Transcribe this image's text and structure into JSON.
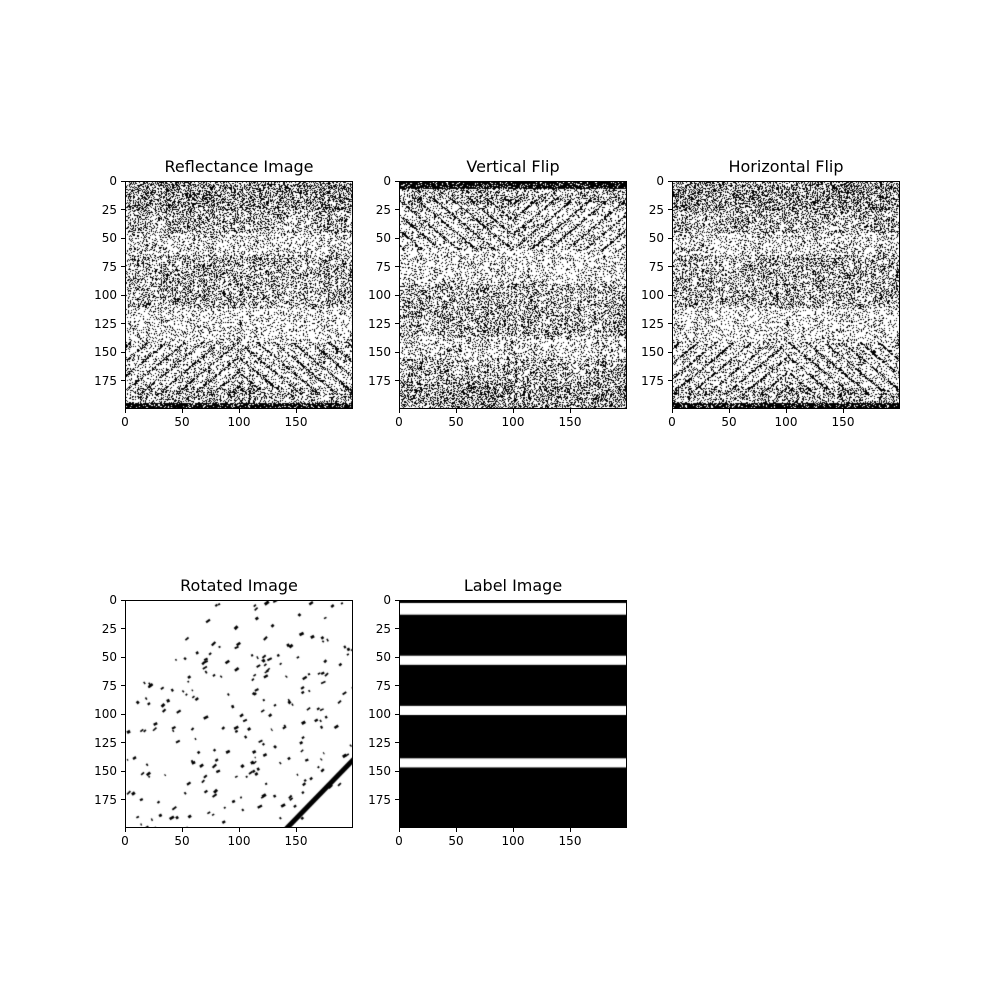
{
  "figure": {
    "panels": [
      {
        "title": "Reflectance Image",
        "pattern": "reflectance"
      },
      {
        "title": "Vertical Flip",
        "pattern": "vflip"
      },
      {
        "title": "Horizontal Flip",
        "pattern": "hflip"
      },
      {
        "title": "Rotated Image",
        "pattern": "rotated"
      },
      {
        "title": "Label Image",
        "pattern": "label"
      }
    ],
    "axis": {
      "xticks": [
        "0",
        "50",
        "100",
        "150"
      ],
      "yticks": [
        "0",
        "25",
        "50",
        "75",
        "100",
        "125",
        "150",
        "175"
      ],
      "xlim": [
        0,
        200
      ],
      "ylim": [
        0,
        200
      ]
    },
    "label_image_white_bands_rows": [
      [
        0,
        12
      ],
      [
        48,
        56
      ],
      [
        92,
        100
      ],
      [
        138,
        146
      ]
    ],
    "image_colormap": "binary (black/white)"
  }
}
